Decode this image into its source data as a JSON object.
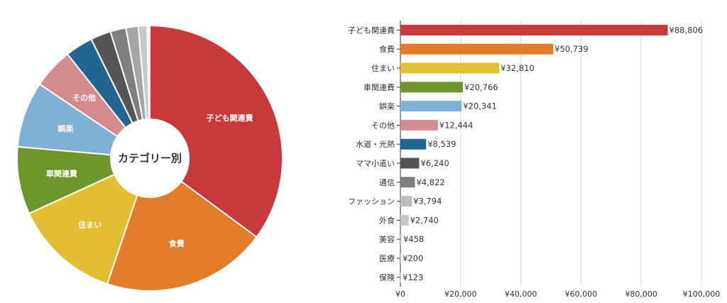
{
  "chart_data": [
    {
      "type": "pie",
      "center_label": "カテゴリー別",
      "categories": [
        "子ども関連費",
        "食費",
        "住まい",
        "車関連費",
        "娯楽",
        "その他",
        "水道・光熱",
        "ママ小遣い",
        "通信",
        "ファッション",
        "外食",
        "美容",
        "医療",
        "保険"
      ],
      "values": [
        88806,
        50739,
        32810,
        20766,
        20341,
        12444,
        8539,
        6240,
        4822,
        3794,
        2740,
        458,
        200,
        123
      ],
      "slice_labels_shown": [
        "子ども関連費",
        "食費",
        "住まい",
        "車関連費",
        "娯楽",
        "その他"
      ],
      "colors": [
        "#c9393b",
        "#e37b28",
        "#e3be31",
        "#6e962a",
        "#7fb0d5",
        "#d48b8b",
        "#236592",
        "#555555",
        "#7f7f7f",
        "#a6a6a6",
        "#c8c8c8",
        "#d8d8d8",
        "#e2e2e2",
        "#ebebeb"
      ]
    },
    {
      "type": "bar",
      "orientation": "horizontal",
      "categories": [
        "子ども関連費",
        "食費",
        "住まい",
        "車関連費",
        "娯楽",
        "その他",
        "水道・光熱",
        "ママ小遣い",
        "通信",
        "ファッション",
        "外食",
        "美容",
        "医療",
        "保険"
      ],
      "values": [
        88806,
        50739,
        32810,
        20766,
        20341,
        12444,
        8539,
        6240,
        4822,
        3794,
        2740,
        458,
        200,
        123
      ],
      "value_labels": [
        "¥88,806",
        "¥50,739",
        "¥32,810",
        "¥20,766",
        "¥20,341",
        "¥12,444",
        "¥8,539",
        "¥6,240",
        "¥4,822",
        "¥3,794",
        "¥2,740",
        "¥458",
        "¥200",
        "¥123"
      ],
      "xlim": [
        0,
        100000
      ],
      "xticks": [
        0,
        20000,
        40000,
        60000,
        80000,
        100000
      ],
      "xtick_labels": [
        "¥0",
        "¥20,000",
        "¥40,000",
        "¥60,000",
        "¥80,000",
        "¥100,000"
      ],
      "grid": true,
      "colors": [
        "#c9393b",
        "#e37b28",
        "#e3be31",
        "#6e962a",
        "#7fb0d5",
        "#d48b8b",
        "#236592",
        "#555555",
        "#7f7f7f",
        "#bdbdbd",
        "#c8c8c8",
        "#d8d8d8",
        "#e2e2e2",
        "#ebebeb"
      ]
    }
  ]
}
